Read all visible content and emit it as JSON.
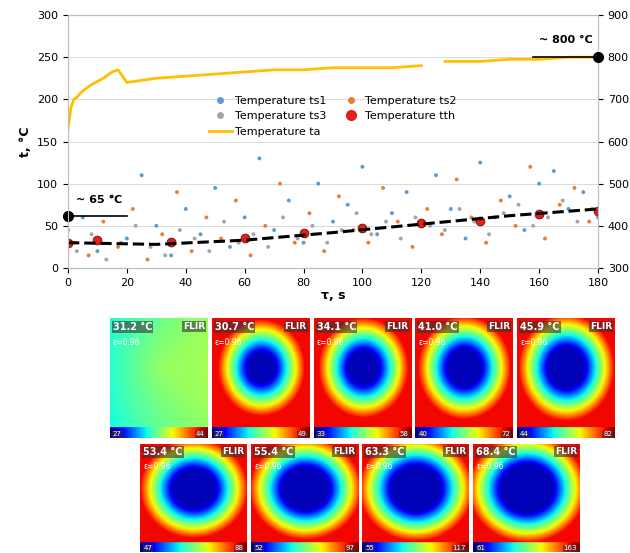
{
  "chart_data": {
    "type": "scatter",
    "x_label": "τ, s",
    "y_label": "t, °C",
    "xlim": [
      0,
      180
    ],
    "xticks": [
      0,
      20,
      40,
      60,
      80,
      100,
      120,
      140,
      160,
      180
    ],
    "ylim": [
      0,
      300
    ],
    "yticks": [
      0,
      50,
      100,
      150,
      200,
      250,
      300
    ],
    "y2lim": [
      300,
      900
    ],
    "y2ticks": [
      300,
      400,
      500,
      600,
      700,
      800,
      900
    ],
    "grid": true,
    "legend": "center",
    "series": [
      {
        "name": "Temperature ts1",
        "type": "scatter",
        "color": "#5b9bd5",
        "marker": "circle",
        "x": [
          0,
          5,
          10,
          15,
          20,
          25,
          30,
          35,
          40,
          45,
          50,
          55,
          60,
          65,
          70,
          75,
          80,
          85,
          90,
          95,
          100,
          105,
          110,
          115,
          120,
          125,
          130,
          135,
          140,
          145,
          150,
          155,
          160,
          165,
          170,
          175,
          180
        ],
        "values": [
          45,
          60,
          20,
          85,
          35,
          110,
          50,
          15,
          70,
          40,
          95,
          25,
          60,
          130,
          45,
          80,
          30,
          100,
          55,
          75,
          120,
          40,
          65,
          90,
          50,
          110,
          70,
          35,
          125,
          60,
          85,
          45,
          100,
          115,
          70,
          90,
          60
        ]
      },
      {
        "name": "Temperature ts2",
        "type": "scatter",
        "color": "#ed7d31",
        "marker": "circle",
        "x": [
          2,
          7,
          12,
          17,
          22,
          27,
          32,
          37,
          42,
          47,
          52,
          57,
          62,
          67,
          72,
          77,
          82,
          87,
          92,
          97,
          102,
          107,
          112,
          117,
          122,
          127,
          132,
          137,
          142,
          147,
          152,
          157,
          162,
          167,
          172,
          177
        ],
        "values": [
          30,
          15,
          55,
          25,
          70,
          10,
          40,
          90,
          20,
          60,
          35,
          80,
          15,
          50,
          100,
          30,
          65,
          20,
          85,
          45,
          30,
          95,
          55,
          25,
          70,
          40,
          105,
          60,
          30,
          80,
          50,
          120,
          35,
          75,
          95,
          55
        ]
      },
      {
        "name": "Temperature ts3",
        "type": "scatter",
        "color": "#a5a5a5",
        "marker": "circle",
        "x": [
          3,
          8,
          13,
          18,
          23,
          28,
          33,
          38,
          43,
          48,
          53,
          58,
          63,
          68,
          73,
          78,
          83,
          88,
          93,
          98,
          103,
          108,
          113,
          118,
          123,
          128,
          133,
          138,
          143,
          148,
          153,
          158,
          163,
          168,
          173,
          178
        ],
        "values": [
          20,
          40,
          10,
          30,
          50,
          25,
          15,
          45,
          35,
          20,
          55,
          30,
          40,
          25,
          60,
          35,
          50,
          30,
          45,
          65,
          40,
          55,
          35,
          60,
          50,
          45,
          70,
          55,
          40,
          65,
          75,
          50,
          60,
          80,
          55,
          70
        ]
      },
      {
        "name": "Temperature tth",
        "type": "scatter",
        "color": "#e0201b",
        "marker": "circle",
        "x": [
          0,
          10,
          35,
          60,
          80,
          100,
          120,
          140,
          160,
          180
        ],
        "values": [
          30,
          33,
          31,
          35,
          42,
          47,
          53,
          56,
          64,
          68
        ]
      },
      {
        "name": "Temperature ta",
        "type": "line",
        "color": "#ffc000",
        "axis": "y2",
        "line_style": "solid",
        "x": [
          0,
          1,
          2,
          3,
          5,
          8,
          12,
          15,
          17,
          18,
          20,
          25,
          30,
          40,
          50,
          60,
          70,
          80,
          90,
          100,
          110,
          120,
          124,
          128,
          140,
          150,
          160,
          170,
          180
        ],
        "values": [
          630,
          680,
          700,
          705,
          720,
          735,
          750,
          765,
          770,
          760,
          740,
          745,
          750,
          755,
          760,
          765,
          770,
          770,
          775,
          775,
          775,
          780,
          null,
          790,
          790,
          795,
          795,
          800,
          800
        ]
      }
    ],
    "trend": {
      "color": "#000000",
      "line_style": "dashed",
      "x": [
        0,
        30,
        60,
        90,
        120,
        150,
        180
      ],
      "values": [
        30,
        28,
        33,
        42,
        52,
        62,
        70
      ]
    },
    "annotations": [
      {
        "text": "~ 65 °C",
        "x": 0,
        "y": 62,
        "axis": "y",
        "line_x": [
          0,
          20
        ]
      },
      {
        "text": "~ 800 °C",
        "x": 180,
        "y": 800,
        "axis": "y2",
        "line_x": [
          158,
          180
        ]
      }
    ]
  },
  "thermal_images": [
    {
      "temperature": "31.2 °C",
      "brand": "FLIR",
      "emissivity": "ε=0.96",
      "scale": [
        27,
        44
      ]
    },
    {
      "temperature": "30.7 °C",
      "brand": "FLIR",
      "emissivity": "ε=0.96",
      "scale": [
        27,
        49
      ]
    },
    {
      "temperature": "34.1 °C",
      "brand": "FLIR",
      "emissivity": "ε=0.96",
      "scale": [
        33,
        58
      ]
    },
    {
      "temperature": "41.0 °C",
      "brand": "FLIR",
      "emissivity": "ε=0.96",
      "scale": [
        40,
        72
      ]
    },
    {
      "temperature": "45.9 °C",
      "brand": "FLIR",
      "emissivity": "ε=0.96",
      "scale": [
        44,
        82
      ]
    },
    {
      "temperature": "53.4 °C",
      "brand": "FLIR",
      "emissivity": "ε=0.96",
      "scale": [
        47,
        88
      ]
    },
    {
      "temperature": "55.4 °C",
      "brand": "FLIR",
      "emissivity": "ε=0.96",
      "scale": [
        52,
        97
      ]
    },
    {
      "temperature": "63.3 °C",
      "brand": "FLIR",
      "emissivity": "ε=0.96",
      "scale": [
        55,
        117
      ]
    },
    {
      "temperature": "68.4 °C",
      "brand": "FLIR",
      "emissivity": "ε=0.96",
      "scale": [
        61,
        163
      ]
    }
  ]
}
